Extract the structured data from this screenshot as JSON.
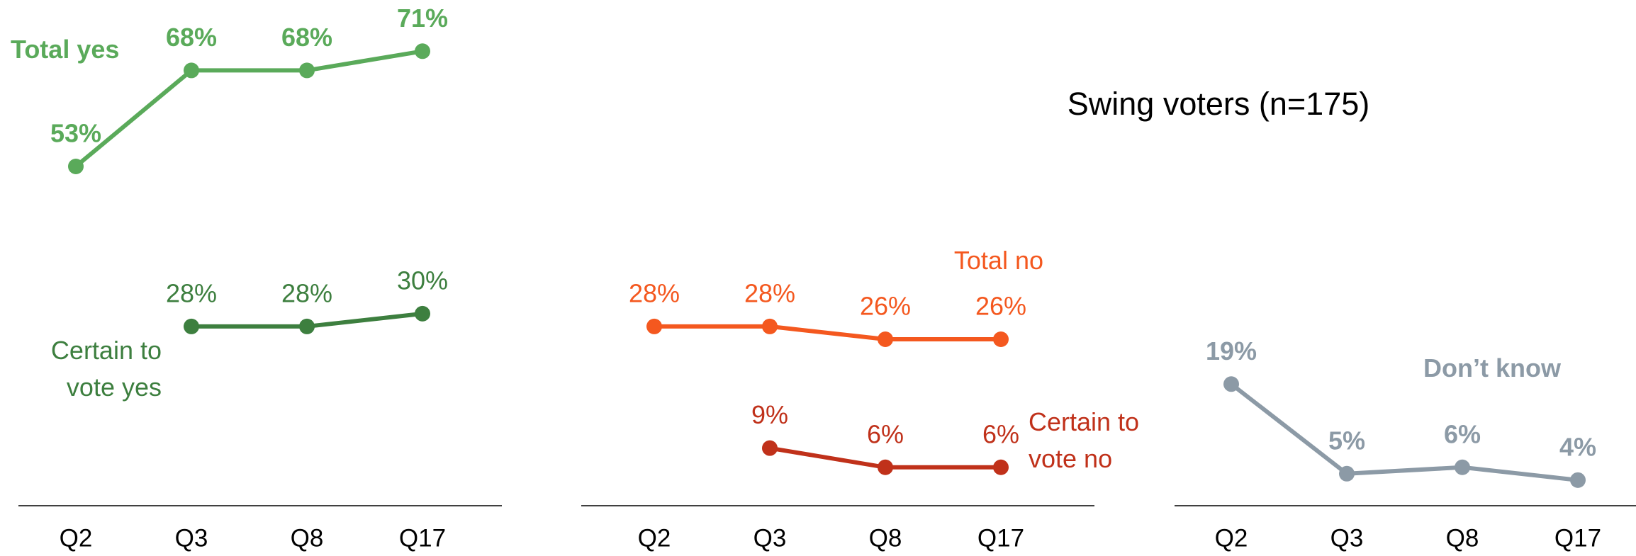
{
  "title": "Swing voters (n=175)",
  "chart_data": [
    {
      "type": "line",
      "categories": [
        "Q2",
        "Q3",
        "Q8",
        "Q17"
      ],
      "ylim": [
        0,
        79
      ],
      "series": [
        {
          "name": "Total yes",
          "color": "#5aaa5a",
          "values": [
            53,
            68,
            68,
            71
          ],
          "value_labels": [
            "53%",
            "68%",
            "68%",
            "71%"
          ]
        },
        {
          "name": "Certain to vote yes",
          "color": "#3d7f3f",
          "values": [
            null,
            28,
            28,
            30
          ],
          "value_labels": [
            null,
            "28%",
            "28%",
            "30%"
          ]
        }
      ]
    },
    {
      "type": "line",
      "categories": [
        "Q2",
        "Q3",
        "Q8",
        "Q17"
      ],
      "ylim": [
        0,
        79
      ],
      "series": [
        {
          "name": "Total no",
          "color": "#f4581f",
          "values": [
            28,
            28,
            26,
            26
          ],
          "value_labels": [
            "28%",
            "28%",
            "26%",
            "26%"
          ]
        },
        {
          "name": "Certain to vote no",
          "color": "#c0311a",
          "values": [
            null,
            9,
            6,
            6
          ],
          "value_labels": [
            null,
            "9%",
            "6%",
            "6%"
          ]
        }
      ]
    },
    {
      "type": "line",
      "categories": [
        "Q2",
        "Q3",
        "Q8",
        "Q17"
      ],
      "ylim": [
        0,
        79
      ],
      "series": [
        {
          "name": "Don’t know",
          "color": "#8c9aa6",
          "values": [
            19,
            5,
            6,
            4
          ],
          "value_labels": [
            "19%",
            "5%",
            "6%",
            "4%"
          ]
        }
      ]
    }
  ]
}
